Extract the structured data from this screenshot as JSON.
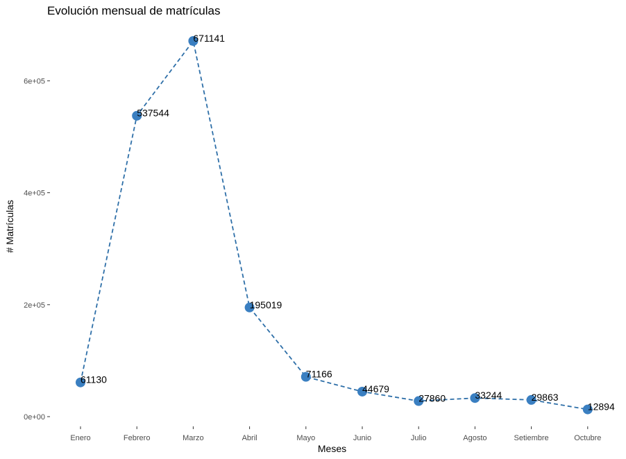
{
  "chart_data": {
    "type": "line",
    "title": "Evolución mensual de matrículas",
    "xlabel": "Meses",
    "ylabel": "# Matrículas",
    "categories": [
      "Enero",
      "Febrero",
      "Marzo",
      "Abril",
      "Mayo",
      "Junio",
      "Julio",
      "Agosto",
      "Setiembre",
      "Octubre"
    ],
    "values": [
      61130,
      537544,
      671141,
      195019,
      71166,
      44679,
      27860,
      33244,
      29863,
      12894
    ],
    "data_labels": [
      "61130",
      "537544",
      "671141",
      "195019",
      "71166",
      "44679",
      "27860",
      "33244",
      "29863",
      "12894"
    ],
    "yticks": [
      0,
      200000,
      400000,
      600000
    ],
    "ytick_labels": [
      "0e+00",
      "2e+05",
      "4e+05",
      "6e+05"
    ],
    "ylim": [
      0,
      671141
    ],
    "grid": false,
    "line_style": "dashed",
    "series_color": "#2e6fa8",
    "point_color": "#3a7fc1"
  }
}
